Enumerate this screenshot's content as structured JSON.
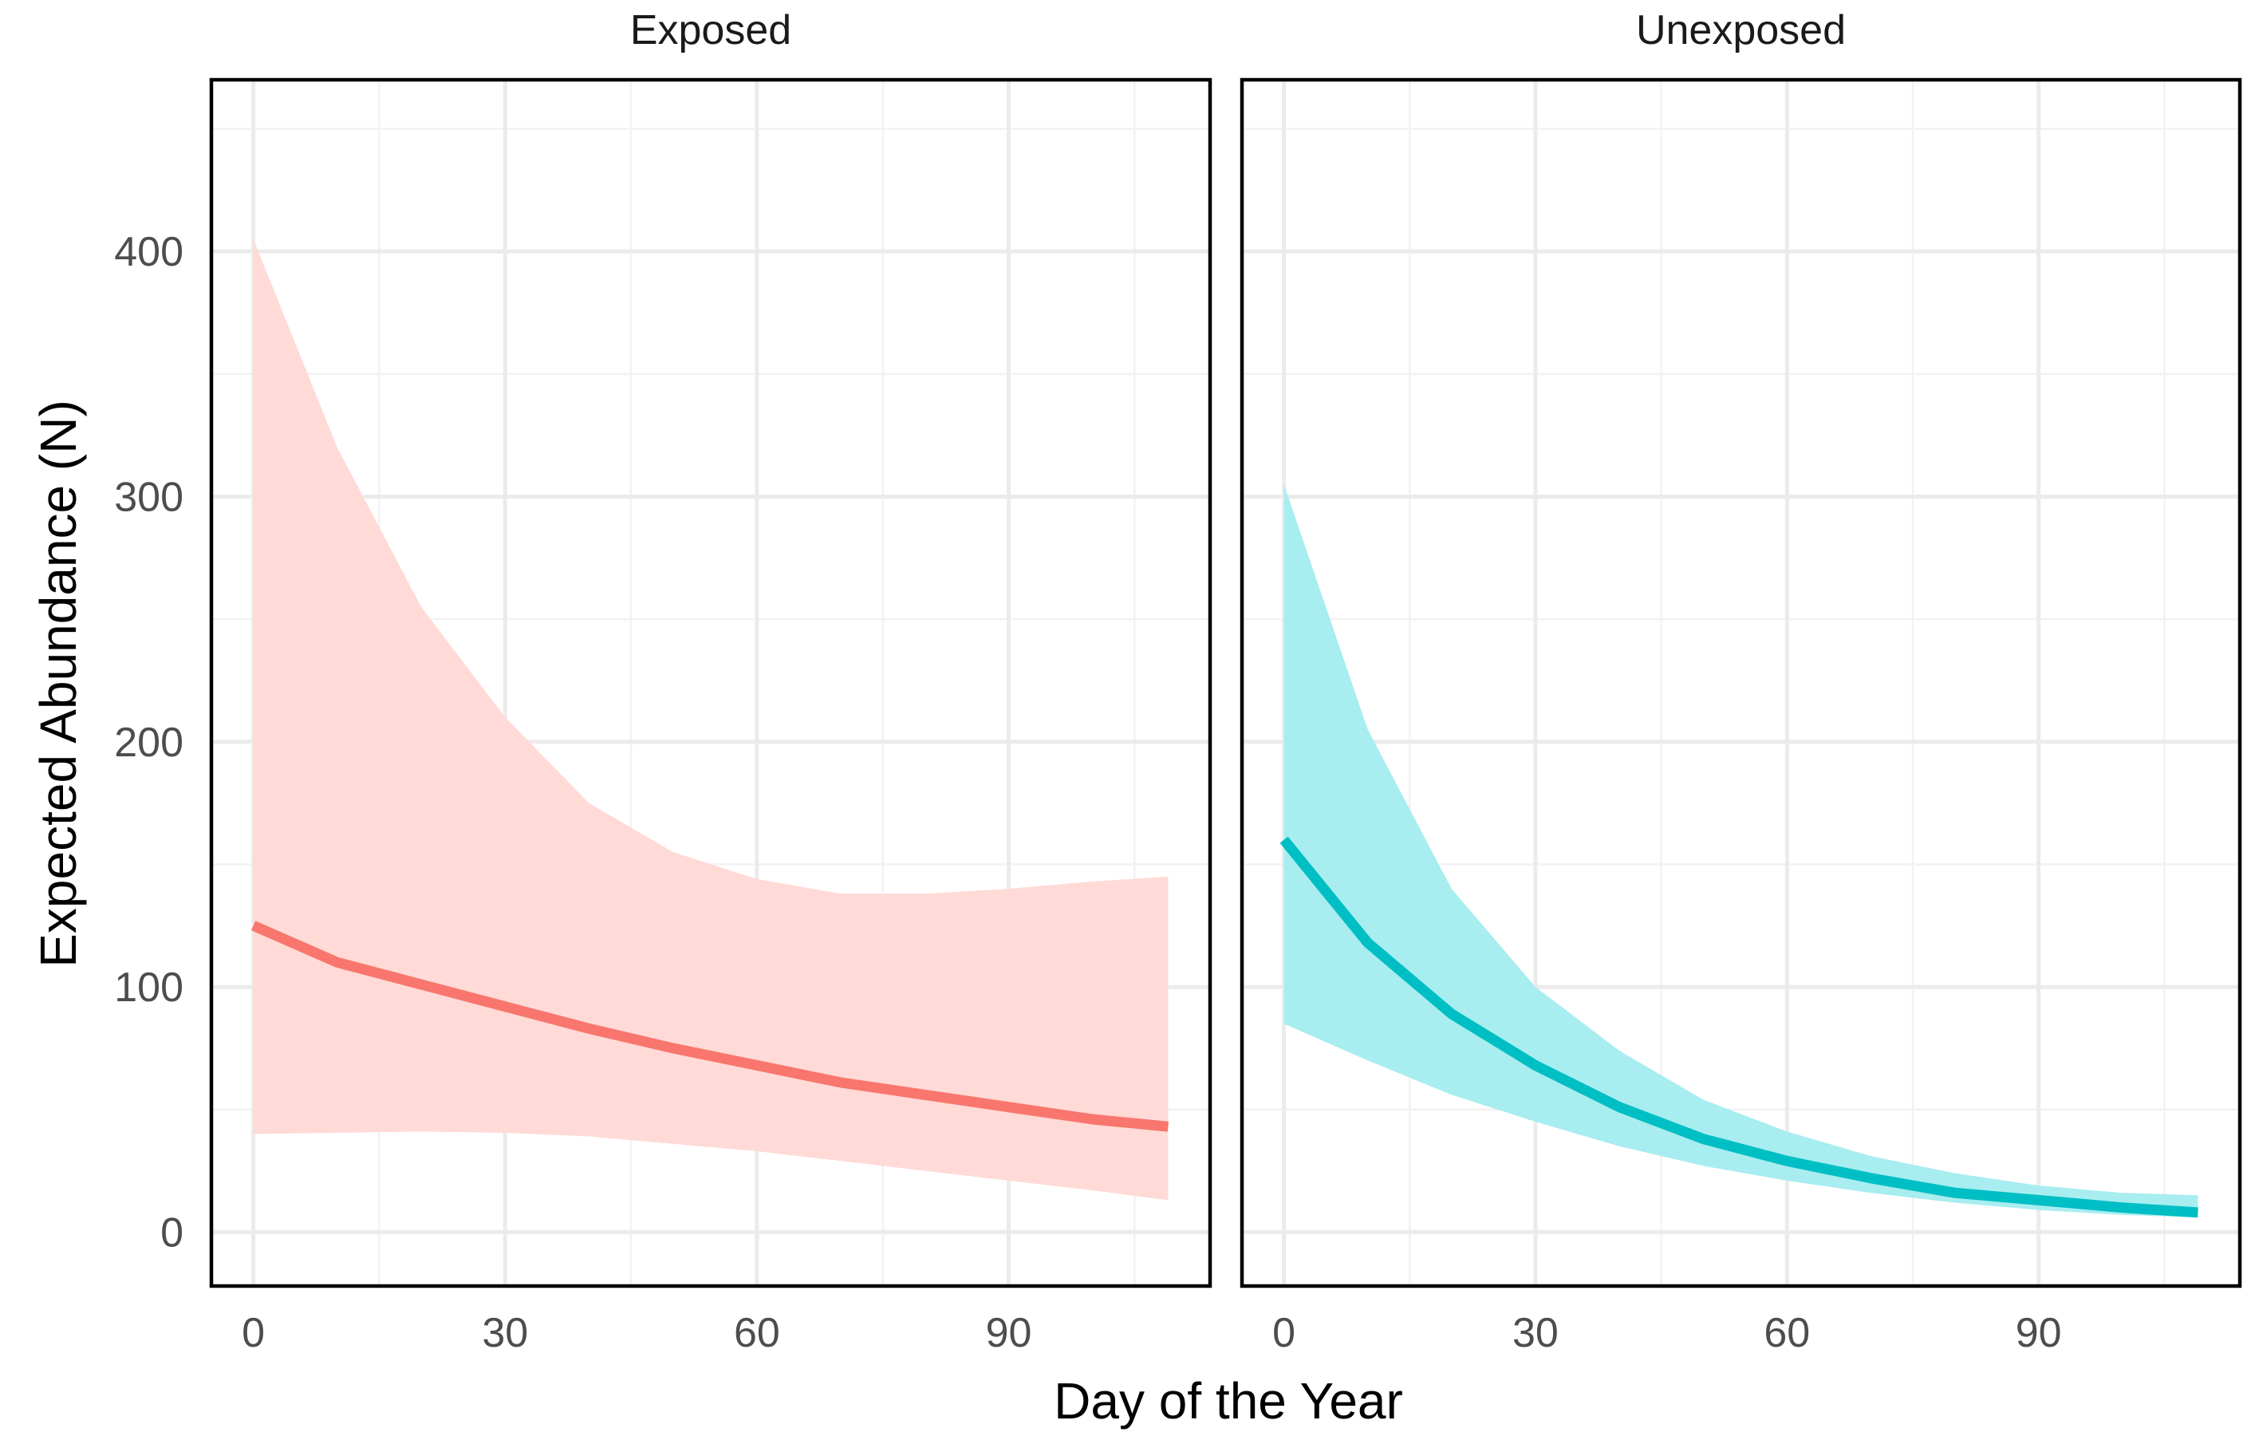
{
  "chart_data": {
    "type": "line",
    "xlabel": "Day of the Year",
    "ylabel": "Expected Abundance (N)",
    "xlim": [
      -5,
      114
    ],
    "ylim": [
      -22,
      470
    ],
    "x_ticks": [
      0,
      30,
      60,
      90
    ],
    "y_ticks": [
      0,
      100,
      200,
      300,
      400
    ],
    "x_tick_labels": [
      "0",
      "30",
      "60",
      "90"
    ],
    "y_tick_labels": [
      "0",
      "100",
      "200",
      "300",
      "400"
    ],
    "grid": true,
    "legend": "none",
    "panels": [
      {
        "label": "Exposed",
        "color": "#F8766D",
        "ribbon_color": "#FFDAD7",
        "x": [
          0,
          10,
          20,
          30,
          40,
          50,
          60,
          70,
          80,
          90,
          100,
          109
        ],
        "y": [
          125,
          110,
          101,
          92,
          83,
          75,
          68,
          61,
          56,
          51,
          46,
          43
        ],
        "lower": [
          40,
          40.5,
          41,
          40.5,
          39,
          36,
          33,
          29,
          25,
          21,
          17,
          13
        ],
        "upper": [
          405,
          320,
          255,
          210,
          175,
          155,
          144,
          138,
          138,
          140,
          143,
          145
        ]
      },
      {
        "label": "Unexposed",
        "color": "#00BFC4",
        "ribbon_color": "#A8EDF0",
        "x": [
          0,
          10,
          20,
          30,
          40,
          50,
          60,
          70,
          80,
          90,
          100,
          109
        ],
        "y": [
          160,
          118,
          89,
          68,
          51,
          38,
          29,
          22,
          16,
          13,
          10,
          8
        ],
        "lower": [
          85,
          70,
          56,
          45,
          35,
          27,
          21,
          16,
          12,
          9,
          7,
          6
        ],
        "upper": [
          305,
          205,
          140,
          100,
          74,
          54,
          41,
          31,
          24,
          19,
          16,
          15
        ]
      }
    ]
  }
}
